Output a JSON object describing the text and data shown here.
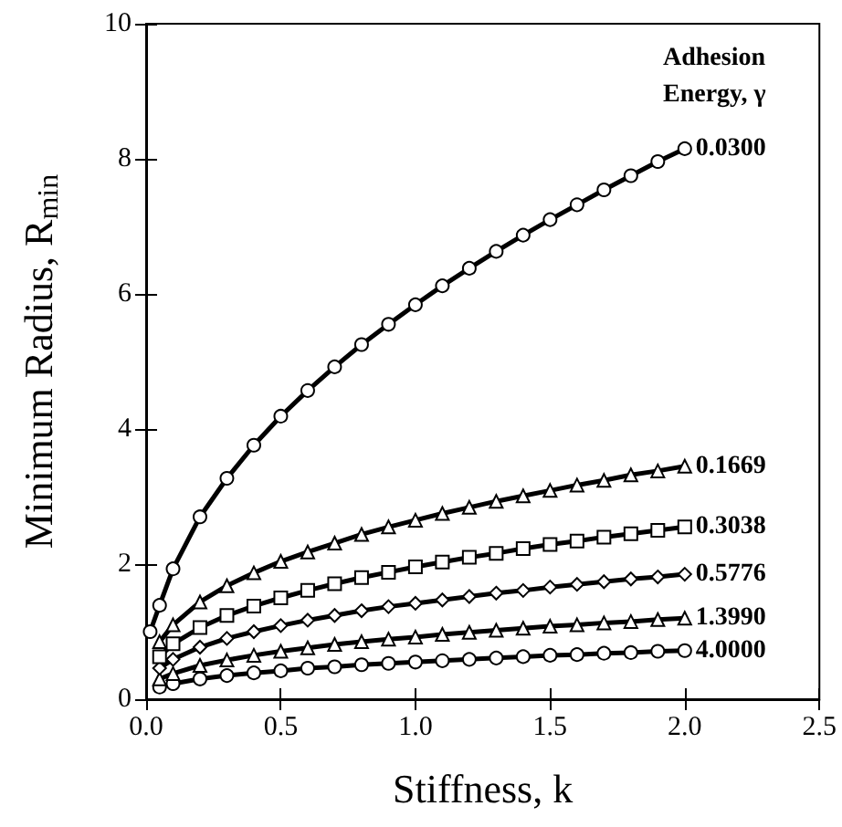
{
  "chart_data": {
    "type": "line",
    "xlabel": "Stiffness, k",
    "ylabel": "Minimum Radius, R$_{min}$",
    "legend_title": "Adhesion Energy, γ",
    "x": [
      0.05,
      0.1,
      0.2,
      0.3,
      0.4,
      0.5,
      0.6,
      0.7,
      0.8,
      0.9,
      1.0,
      1.1,
      1.2,
      1.3,
      1.4,
      1.5,
      1.6,
      1.7,
      1.8,
      1.9,
      2.0
    ],
    "series": [
      {
        "name": "0.0300",
        "color": "#000000",
        "marker": "circle",
        "x": [
          0.015,
          0.05,
          0.1,
          0.2,
          0.3,
          0.4,
          0.5,
          0.6,
          0.7,
          0.8,
          0.9,
          1.0,
          1.1,
          1.2,
          1.3,
          1.4,
          1.5,
          1.6,
          1.7,
          1.8,
          1.9,
          2.0
        ],
        "values": [
          1.0,
          1.39,
          1.93,
          2.7,
          3.27,
          3.76,
          4.19,
          4.57,
          4.92,
          5.25,
          5.55,
          5.84,
          6.12,
          6.38,
          6.63,
          6.87,
          7.1,
          7.32,
          7.54,
          7.75,
          7.96,
          8.15
        ]
      },
      {
        "name": "0.1669",
        "color": "#000000",
        "marker": "triangle",
        "values": [
          0.85,
          1.1,
          1.44,
          1.68,
          1.87,
          2.04,
          2.18,
          2.31,
          2.44,
          2.55,
          2.65,
          2.75,
          2.84,
          2.93,
          3.01,
          3.09,
          3.17,
          3.24,
          3.32,
          3.38,
          3.45
        ]
      },
      {
        "name": "0.3038",
        "color": "#000000",
        "marker": "square",
        "values": [
          0.63,
          0.82,
          1.06,
          1.24,
          1.38,
          1.5,
          1.61,
          1.71,
          1.8,
          1.88,
          1.96,
          2.03,
          2.1,
          2.16,
          2.23,
          2.29,
          2.34,
          2.4,
          2.45,
          2.5,
          2.55
        ]
      },
      {
        "name": "0.5776",
        "color": "#000000",
        "marker": "diamond",
        "values": [
          0.46,
          0.59,
          0.77,
          0.9,
          1.0,
          1.09,
          1.17,
          1.24,
          1.31,
          1.37,
          1.42,
          1.47,
          1.52,
          1.57,
          1.61,
          1.66,
          1.7,
          1.74,
          1.78,
          1.81,
          1.85
        ]
      },
      {
        "name": "1.3990",
        "color": "#000000",
        "marker": "triangle",
        "values": [
          0.3,
          0.38,
          0.5,
          0.58,
          0.65,
          0.71,
          0.76,
          0.81,
          0.85,
          0.89,
          0.92,
          0.96,
          0.99,
          1.02,
          1.05,
          1.08,
          1.1,
          1.13,
          1.15,
          1.18,
          1.2
        ]
      },
      {
        "name": "4.0000",
        "color": "#000000",
        "marker": "circle",
        "values": [
          0.18,
          0.23,
          0.3,
          0.35,
          0.39,
          0.42,
          0.46,
          0.48,
          0.51,
          0.53,
          0.55,
          0.57,
          0.59,
          0.61,
          0.63,
          0.65,
          0.66,
          0.68,
          0.69,
          0.71,
          0.72
        ]
      }
    ],
    "xlim": [
      0,
      2.5
    ],
    "xticks": [
      {
        "value": 0,
        "label": "0.0"
      },
      {
        "value": 0.5,
        "label": "0.5"
      },
      {
        "value": 1,
        "label": "1.0"
      },
      {
        "value": 1.5,
        "label": "1.5"
      },
      {
        "value": 2,
        "label": "2.0"
      },
      {
        "value": 2.5,
        "label": "2.5"
      }
    ],
    "ylim": [
      0,
      10
    ],
    "yticks": [
      0,
      2,
      4,
      6,
      8,
      10
    ],
    "grid": false,
    "legend": false
  }
}
